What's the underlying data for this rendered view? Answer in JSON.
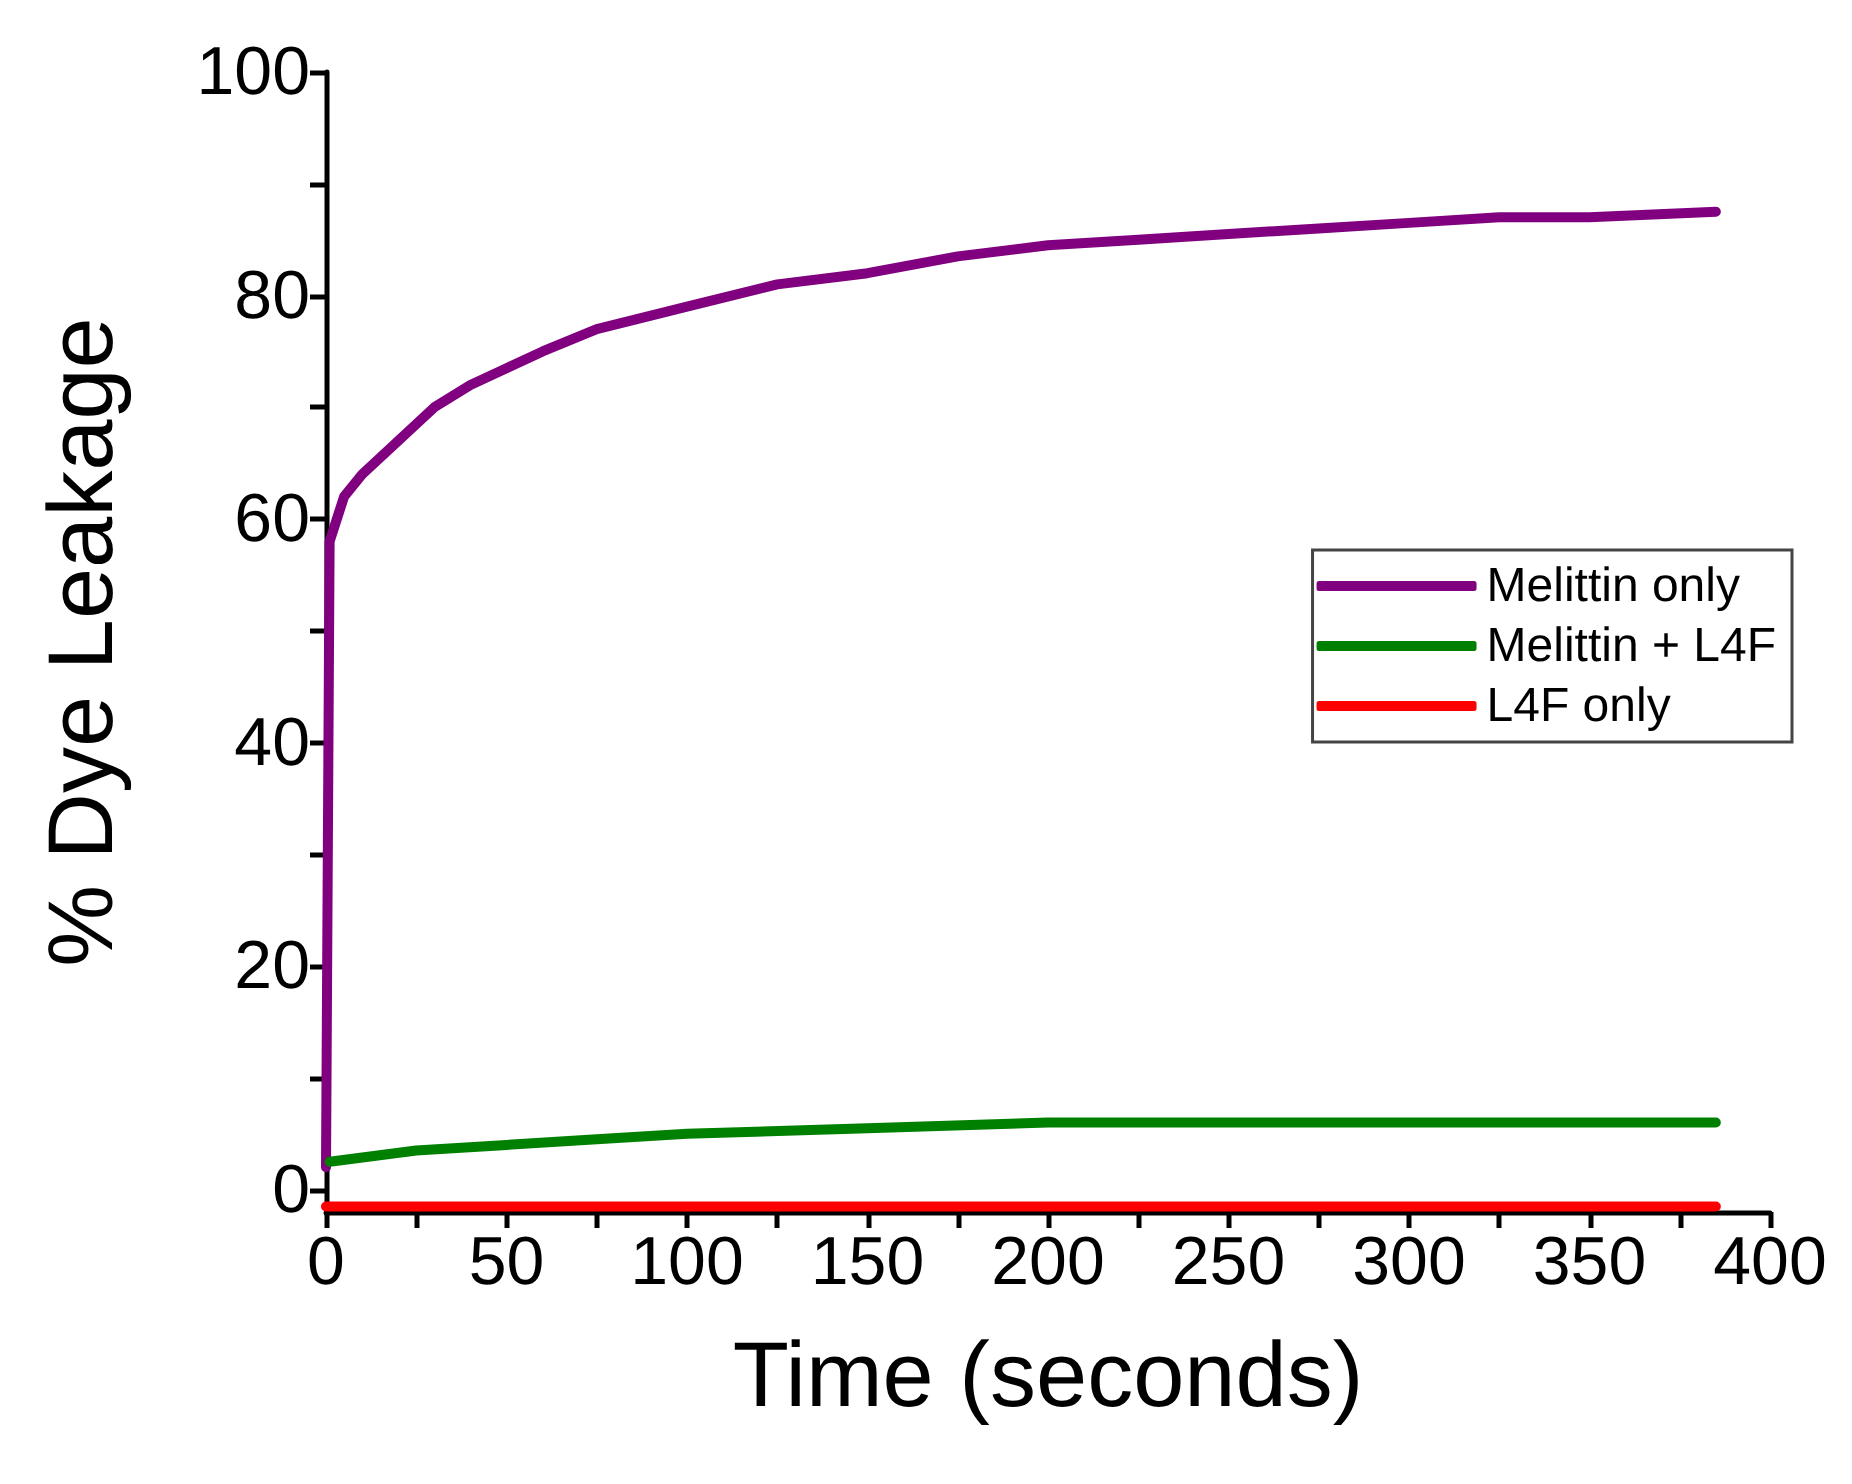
{
  "chart_data": {
    "type": "line",
    "xlabel": "Time (seconds)",
    "ylabel": "% Dye Leakage",
    "xlim": [
      0,
      400
    ],
    "xticks": [
      0,
      {
        "value": 25,
        "label": null
      },
      50,
      {
        "value": 75,
        "label": null
      },
      100,
      {
        "value": 125,
        "label": null
      },
      150,
      {
        "value": 175,
        "label": null
      },
      200,
      {
        "value": 225,
        "label": null
      },
      250,
      {
        "value": 275,
        "label": null
      },
      300,
      {
        "value": 325,
        "label": null
      },
      350,
      {
        "value": 375,
        "label": null
      },
      400
    ],
    "ylim": [
      -2,
      100
    ],
    "yticks": [
      0,
      {
        "value": 10,
        "label": null
      },
      20,
      {
        "value": 30,
        "label": null
      },
      40,
      {
        "value": 50,
        "label": null
      },
      60,
      {
        "value": 70,
        "label": null
      },
      80,
      {
        "value": 90,
        "label": null
      },
      100
    ],
    "grid": false,
    "legend": "right",
    "marker": "none",
    "line_style": "solid",
    "series": [
      {
        "name": "Melittin only",
        "color": "#800080",
        "x": [
          0,
          1,
          5,
          10,
          20,
          30,
          40,
          50,
          60,
          75,
          100,
          125,
          150,
          175,
          200,
          225,
          250,
          275,
          300,
          325,
          350,
          385
        ],
        "values": [
          2,
          58,
          62,
          64,
          67,
          70,
          72,
          73.5,
          75,
          77,
          79,
          81,
          82,
          83.5,
          84.5,
          85,
          85.5,
          86,
          86.5,
          87,
          87,
          87.5
        ]
      },
      {
        "name": "Melittin + L4F",
        "color": "#008000",
        "x": [
          1,
          25,
          50,
          75,
          100,
          150,
          200,
          250,
          300,
          350,
          385
        ],
        "values": [
          2.5,
          3.5,
          4,
          4.5,
          5,
          5.5,
          6,
          6,
          6,
          6,
          6
        ]
      },
      {
        "name": "L4F only",
        "color": "#ff0000",
        "x": [
          0,
          100,
          200,
          300,
          385
        ],
        "values": [
          -1.5,
          -1.5,
          -1.5,
          -1.5,
          -1.5
        ]
      }
    ]
  }
}
